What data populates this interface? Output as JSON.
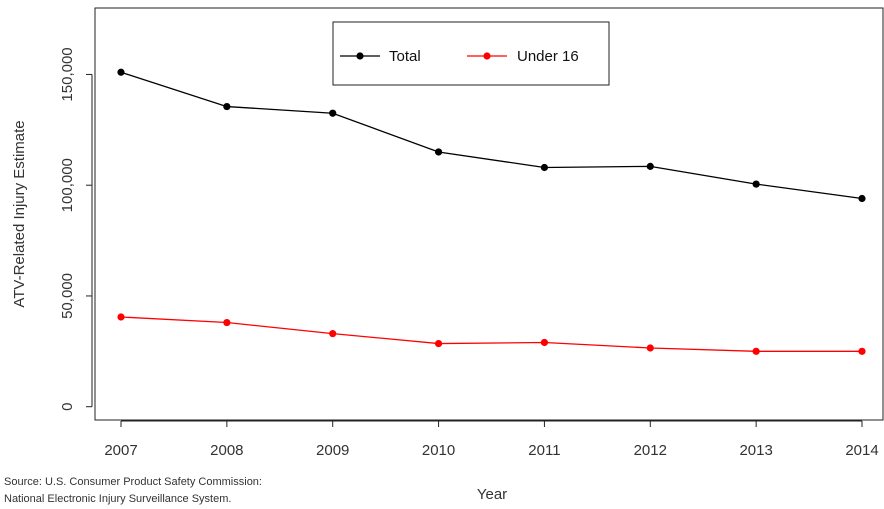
{
  "chart_data": {
    "type": "line",
    "title": "",
    "xlabel": "Year",
    "ylabel": "ATV-Related Injury Estimate",
    "x": [
      2007,
      2008,
      2009,
      2010,
      2011,
      2012,
      2013,
      2014
    ],
    "x_tick_labels": [
      "2007",
      "2008",
      "2009",
      "2010",
      "2011",
      "2012",
      "2013",
      "2014"
    ],
    "y_ticks": [
      0,
      50000,
      100000,
      150000
    ],
    "y_tick_labels": [
      "0",
      "50,000",
      "100,000",
      "150,000"
    ],
    "ylim": [
      -6000,
      180000
    ],
    "grid": false,
    "legend_position": "top-center",
    "series": [
      {
        "name": "Total",
        "color": "#000000",
        "values": [
          151000,
          135500,
          132500,
          115000,
          108000,
          108500,
          100500,
          94000
        ]
      },
      {
        "name": "Under 16",
        "color": "#ff0000",
        "values": [
          40500,
          38000,
          33000,
          28500,
          29000,
          26500,
          25000,
          25000
        ]
      }
    ]
  },
  "source_lines": [
    "Source: U.S. Consumer Product Safety Commission:",
    "National Electronic Injury Surveillance System."
  ]
}
